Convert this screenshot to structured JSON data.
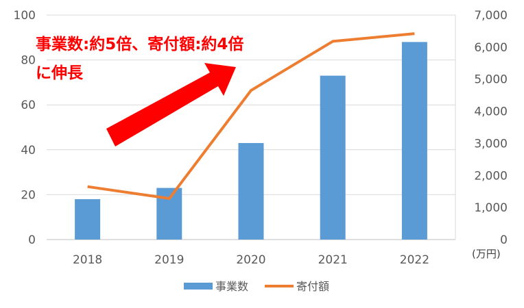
{
  "chart_data": {
    "type": "bar+line",
    "categories": [
      "2018",
      "2019",
      "2020",
      "2021",
      "2022"
    ],
    "series": [
      {
        "name": "事業数",
        "type": "bar",
        "axis": "left",
        "color": "#5b9bd5",
        "values": [
          18,
          23,
          43,
          73,
          88
        ]
      },
      {
        "name": "寄付額",
        "type": "line",
        "axis": "right",
        "color": "#ed7d31",
        "values": [
          1650,
          1280,
          4650,
          6180,
          6420
        ]
      }
    ],
    "y_left": {
      "min": 0,
      "max": 100,
      "step": 20,
      "ticks": [
        "0",
        "20",
        "40",
        "60",
        "80",
        "100"
      ]
    },
    "y_right": {
      "min": 0,
      "max": 7000,
      "step": 1000,
      "ticks": [
        "0",
        "1,000",
        "2,000",
        "3,000",
        "4,000",
        "5,000",
        "6,000",
        "7,000"
      ],
      "unit": "(万円)"
    },
    "grid": true,
    "legend": "bottom",
    "annotation": {
      "line1": "事業数:約5倍、寄付額:約4倍",
      "line2": "に伸長",
      "color": "#ff0000",
      "arrow_color": "#ff0000"
    }
  }
}
